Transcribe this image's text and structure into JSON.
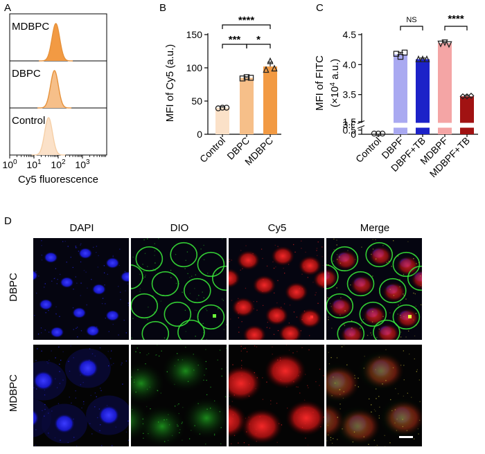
{
  "panel_labels": {
    "a": "A",
    "b": "B",
    "c": "C",
    "d": "D"
  },
  "colors": {
    "orange_line": "#e6913a",
    "ctrl_fill": "#fbe1c8",
    "dbpc_fill": "#f6bf89",
    "mdbpc_fill": "#f29a43",
    "dbpf_fill": "#a9a9f1",
    "dbpf_tb_fill": "#1c22c8",
    "mdbpf_fill": "#f4a5a5",
    "mdbpf_tb_fill": "#a11212"
  },
  "chart_data": [
    {
      "type": "histogram",
      "panel": "A",
      "xlabel": "Cy5 fluorescence",
      "x_scale": "log",
      "xlim": [
        1,
        10000
      ],
      "x_ticks": [
        {
          "base": "10",
          "exp": "0",
          "value": 1
        },
        {
          "base": "10",
          "exp": "1",
          "value": 10
        },
        {
          "base": "10",
          "exp": "2",
          "value": 100
        },
        {
          "base": "10",
          "exp": "3",
          "value": 1000
        }
      ],
      "tracks": [
        {
          "name": "MDBPC",
          "peak": 80,
          "color": "mdbpc_fill"
        },
        {
          "name": "DBPC",
          "peak": 70,
          "color": "dbpc_fill"
        },
        {
          "name": "Control",
          "peak": 40,
          "color": "ctrl_fill"
        }
      ]
    },
    {
      "type": "bar",
      "panel": "B",
      "ylabel": "MFI of Cy5 (a.u.)",
      "ylim": [
        0,
        150
      ],
      "y_ticks": [
        "0",
        "50",
        "100",
        "150"
      ],
      "categories": [
        "Control",
        "DBPC",
        "MDBPC"
      ],
      "values": [
        40,
        85,
        102
      ],
      "points": [
        [
          39,
          40,
          40
        ],
        [
          84,
          86,
          85
        ],
        [
          97,
          110,
          99
        ]
      ],
      "markers": [
        "circle",
        "square",
        "triangle"
      ],
      "significance": [
        {
          "from": 0,
          "to": 2,
          "label": "****"
        },
        {
          "from": 0,
          "to": 1,
          "label": "***"
        },
        {
          "from": 1,
          "to": 2,
          "label": "*"
        }
      ]
    },
    {
      "type": "bar",
      "panel": "C",
      "ylabel_main": "MFI of FITC",
      "ylabel_unit_pre": "(×10",
      "ylabel_unit_sup": "4",
      "ylabel_unit_post": " a.u.)",
      "y_ticks_upper": [
        "3.0",
        "3.5",
        "4.0",
        "4.5"
      ],
      "y_ticks_lower": [
        "0",
        "0.5",
        "1.5"
      ],
      "axis_break": [
        1.5,
        3.0
      ],
      "categories": [
        "Control",
        "DBPF",
        "DBPF+TB",
        "MDBPF",
        "MDBPF+TB"
      ],
      "values": [
        0.02,
        4.17,
        4.09,
        4.36,
        3.47
      ],
      "points": [
        [
          0.02,
          0.02,
          0.02
        ],
        [
          4.18,
          4.13,
          4.2
        ],
        [
          4.09,
          4.09,
          4.09
        ],
        [
          4.35,
          4.37,
          4.34
        ],
        [
          3.47,
          3.47,
          3.48
        ]
      ],
      "markers": [
        "circle",
        "square",
        "triangle",
        "triangle-down",
        "diamond"
      ],
      "significance": [
        {
          "from": 1,
          "to": 2,
          "label": "NS"
        },
        {
          "from": 3,
          "to": 4,
          "label": "****"
        }
      ]
    }
  ],
  "micrograph": {
    "columns": [
      "DAPI",
      "DIO",
      "Cy5",
      "Merge"
    ],
    "rows": [
      "DBPC",
      "MDBPC"
    ]
  }
}
